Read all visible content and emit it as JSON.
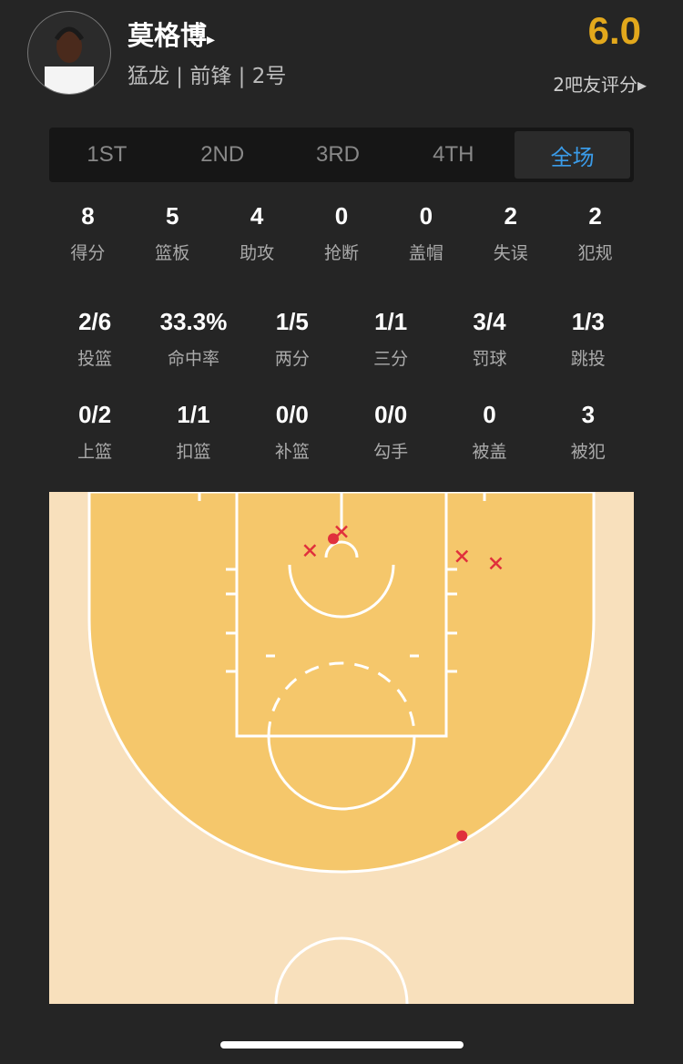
{
  "player": {
    "name": "莫格博",
    "name_arrow": "▸",
    "info": "猛龙 | 前锋 | 2号",
    "rating": "6.0",
    "rating_count": "2吧友评分▸",
    "rating_color": "#e2a81c"
  },
  "tabs": [
    {
      "label": "1ST"
    },
    {
      "label": "2ND"
    },
    {
      "label": "3RD"
    },
    {
      "label": "4TH"
    },
    {
      "label": "全场",
      "active": true
    }
  ],
  "basic_stats": [
    {
      "value": "8",
      "label": "得分"
    },
    {
      "value": "5",
      "label": "篮板"
    },
    {
      "value": "4",
      "label": "助攻"
    },
    {
      "value": "0",
      "label": "抢断"
    },
    {
      "value": "0",
      "label": "盖帽"
    },
    {
      "value": "2",
      "label": "失误"
    },
    {
      "value": "2",
      "label": "犯规"
    }
  ],
  "shooting_stats": [
    {
      "value": "2/6",
      "label": "投篮"
    },
    {
      "value": "33.3%",
      "label": "命中率"
    },
    {
      "value": "1/5",
      "label": "两分"
    },
    {
      "value": "1/1",
      "label": "三分"
    },
    {
      "value": "3/4",
      "label": "罚球"
    },
    {
      "value": "1/3",
      "label": "跳投"
    }
  ],
  "shot_type_stats": [
    {
      "value": "0/2",
      "label": "上篮"
    },
    {
      "value": "1/1",
      "label": "扣篮"
    },
    {
      "value": "0/0",
      "label": "补篮"
    },
    {
      "value": "0/0",
      "label": "勾手"
    },
    {
      "value": "0",
      "label": "被盖"
    },
    {
      "value": "3",
      "label": "被犯"
    }
  ],
  "shot_chart": {
    "units": "feet from basket center (x) / from baseline (y)",
    "shots": [
      {
        "x": -0.7,
        "y": 4.0,
        "made": true
      },
      {
        "x": 10.3,
        "y": 29.4,
        "made": true
      },
      {
        "x": 0,
        "y": 3.4,
        "made": false
      },
      {
        "x": -2.7,
        "y": 5.0,
        "made": false
      },
      {
        "x": 10.3,
        "y": 5.5,
        "made": false
      },
      {
        "x": 13.2,
        "y": 6.1,
        "made": false
      }
    ],
    "colors": {
      "court": "#f8e0bc",
      "inside_three": "#f5c76b",
      "shot": "#e0303c"
    }
  }
}
